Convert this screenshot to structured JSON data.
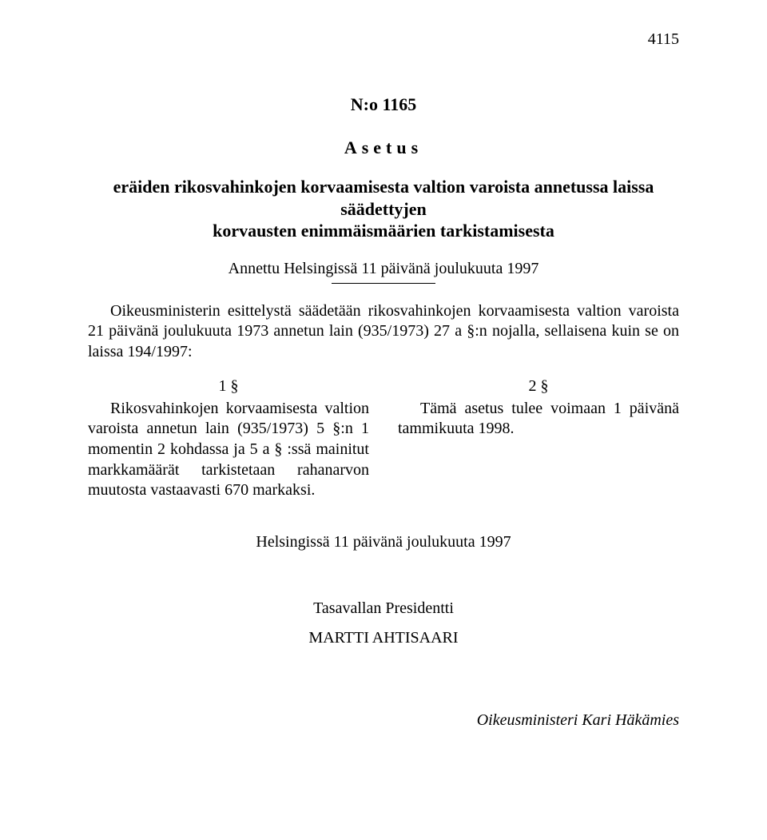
{
  "page_number": "4115",
  "doc_number": "N:o 1165",
  "doc_type": "Asetus",
  "title_line1": "eräiden rikosvahinkojen korvaamisesta valtion varoista annetussa laissa säädettyjen",
  "title_line2": "korvausten enimmäismäärien tarkistamisesta",
  "given_at": "Annettu Helsingissä 11 päivänä joulukuuta 1997",
  "preamble": "Oikeusministerin esittelystä säädetään rikosvahinkojen korvaamisesta valtion varoista 21 päivänä joulukuuta 1973 annetun lain (935/1973) 27 a §:n nojalla, sellaisena kuin se on laissa 194/1997:",
  "section1_head": "1 §",
  "section1_body": "Rikosvahinkojen korvaamisesta valtion varoista annetun lain (935/1973) 5 §:n 1 momentin 2 kohdassa ja 5 a § :ssä mainitut markkamäärät tarkistetaan rahanarvon muutosta vastaavasti 670 markaksi.",
  "section2_head": "2 §",
  "section2_body": "Tämä asetus tulee voimaan 1 päivänä tammikuuta 1998.",
  "closing": "Helsingissä 11 päivänä joulukuuta 1997",
  "president_title": "Tasavallan Presidentti",
  "president_name": "MARTTI AHTISAARI",
  "minister": "Oikeusministeri Kari Häkämies"
}
